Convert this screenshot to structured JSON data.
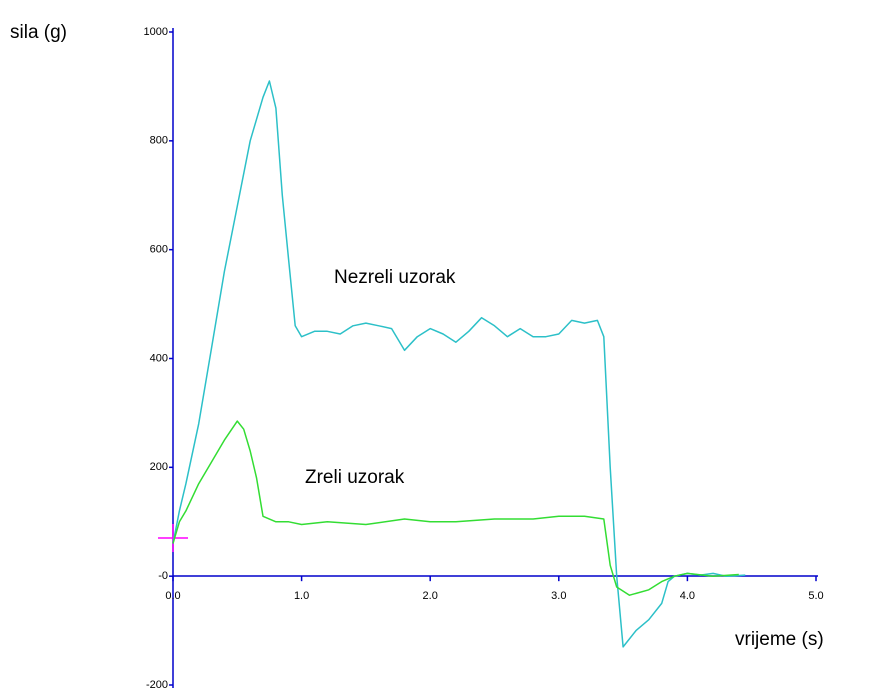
{
  "chart_data": {
    "type": "line",
    "ylabel": "sila (g)",
    "xlabel": "vrijeme (s)",
    "annotations": [
      "Nezreli uzorak",
      "Zreli uzorak"
    ],
    "xlim": [
      0,
      5
    ],
    "ylim": [
      -200,
      1000
    ],
    "xticks": [
      {
        "value": 0,
        "label": "0.0"
      },
      {
        "value": 1,
        "label": "1.0"
      },
      {
        "value": 2,
        "label": "2.0"
      },
      {
        "value": 3,
        "label": "3.0"
      },
      {
        "value": 4,
        "label": "4.0"
      },
      {
        "value": 5,
        "label": "5.0"
      }
    ],
    "yticks": [
      -200,
      {
        "value": 0,
        "label": "-0"
      },
      200,
      400,
      600,
      800,
      1000
    ],
    "series": [
      {
        "name": "Nezreli uzorak",
        "color": "#2cc0c8",
        "x": [
          0,
          0.05,
          0.1,
          0.2,
          0.3,
          0.4,
          0.5,
          0.6,
          0.7,
          0.75,
          0.8,
          0.85,
          0.9,
          0.95,
          1.0,
          1.1,
          1.2,
          1.3,
          1.4,
          1.5,
          1.6,
          1.7,
          1.8,
          1.9,
          2.0,
          2.1,
          2.2,
          2.3,
          2.4,
          2.5,
          2.6,
          2.7,
          2.8,
          2.9,
          3.0,
          3.1,
          3.2,
          3.3,
          3.35,
          3.4,
          3.45,
          3.5,
          3.6,
          3.7,
          3.8,
          3.85,
          3.9,
          4.0,
          4.1,
          4.2,
          4.3,
          4.45
        ],
        "values": [
          60,
          120,
          170,
          280,
          420,
          560,
          680,
          800,
          880,
          910,
          860,
          700,
          580,
          460,
          440,
          450,
          450,
          445,
          460,
          465,
          460,
          455,
          415,
          440,
          455,
          445,
          430,
          450,
          475,
          460,
          440,
          455,
          440,
          440,
          445,
          470,
          465,
          470,
          440,
          200,
          0,
          -130,
          -100,
          -80,
          -50,
          -10,
          0,
          5,
          2,
          5,
          0,
          2
        ]
      },
      {
        "name": "Zreli uzorak",
        "color": "#33dd33",
        "x": [
          0,
          0.05,
          0.1,
          0.2,
          0.3,
          0.4,
          0.5,
          0.55,
          0.6,
          0.65,
          0.7,
          0.8,
          0.9,
          1.0,
          1.2,
          1.5,
          1.8,
          2.0,
          2.2,
          2.5,
          2.8,
          3.0,
          3.2,
          3.35,
          3.4,
          3.45,
          3.55,
          3.7,
          3.8,
          3.9,
          4.0,
          4.2,
          4.4
        ],
        "values": [
          60,
          100,
          120,
          170,
          210,
          250,
          285,
          270,
          230,
          180,
          110,
          100,
          100,
          95,
          100,
          95,
          105,
          100,
          100,
          105,
          105,
          110,
          110,
          105,
          20,
          -20,
          -35,
          -25,
          -10,
          0,
          5,
          0,
          3
        ]
      }
    ]
  }
}
